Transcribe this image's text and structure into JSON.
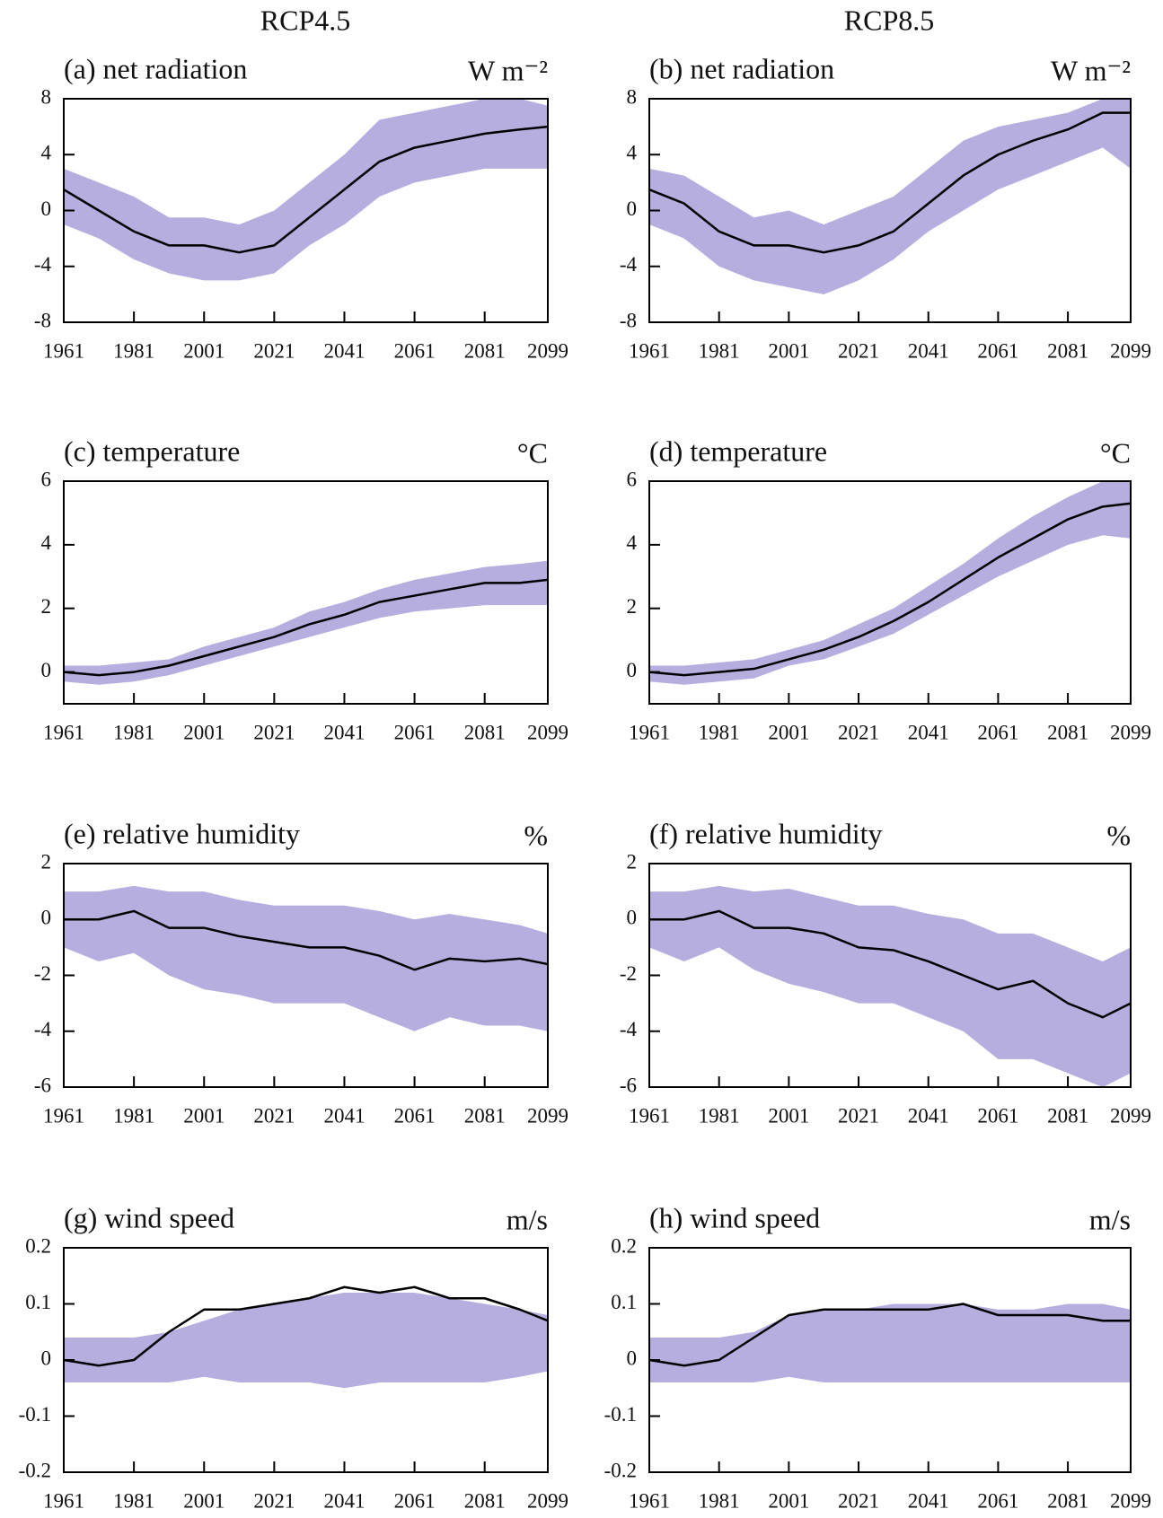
{
  "column_titles": [
    "RCP4.5",
    "RCP8.5"
  ],
  "chart_data": [
    {
      "type": "line",
      "title": "(a) net radiation",
      "unit": "W m⁻²",
      "color": "#000000",
      "band_color": "#b5aede",
      "x": [
        1961,
        1971,
        1981,
        1991,
        2001,
        2011,
        2021,
        2031,
        2041,
        2051,
        2061,
        2071,
        2081,
        2091,
        2099
      ],
      "values": [
        1.5,
        0,
        -1.5,
        -2.5,
        -2.5,
        -3,
        -2.5,
        -0.5,
        1.5,
        3.5,
        4.5,
        5,
        5.5,
        5.8,
        6
      ],
      "lower": [
        -1,
        -2,
        -3.5,
        -4.5,
        -5,
        -5,
        -4.5,
        -2.5,
        -1,
        1,
        2,
        2.5,
        3,
        3,
        3
      ],
      "upper": [
        3,
        2,
        1,
        -0.5,
        -0.5,
        -1,
        0,
        2,
        4,
        6.5,
        7,
        7.5,
        8,
        8,
        7.5
      ],
      "xlim": [
        1961,
        2099
      ],
      "xticks": [
        1961,
        1981,
        2001,
        2021,
        2041,
        2061,
        2081,
        2099
      ],
      "ylim": [
        -8,
        8
      ],
      "yticks": [
        -8,
        -4,
        0,
        4,
        8
      ]
    },
    {
      "type": "line",
      "title": "(b) net radiation",
      "unit": "W m⁻²",
      "color": "#000000",
      "band_color": "#b5aede",
      "x": [
        1961,
        1971,
        1981,
        1991,
        2001,
        2011,
        2021,
        2031,
        2041,
        2051,
        2061,
        2071,
        2081,
        2091,
        2099
      ],
      "values": [
        1.5,
        0.5,
        -1.5,
        -2.5,
        -2.5,
        -3,
        -2.5,
        -1.5,
        0.5,
        2.5,
        4,
        5,
        5.8,
        7,
        7
      ],
      "lower": [
        -1,
        -2,
        -4,
        -5,
        -5.5,
        -6,
        -5,
        -3.5,
        -1.5,
        0,
        1.5,
        2.5,
        3.5,
        4.5,
        3
      ],
      "upper": [
        3,
        2.5,
        1,
        -0.5,
        0,
        -1,
        0,
        1,
        3,
        5,
        6,
        6.5,
        7,
        8,
        8
      ],
      "xlim": [
        1961,
        2099
      ],
      "xticks": [
        1961,
        1981,
        2001,
        2021,
        2041,
        2061,
        2081,
        2099
      ],
      "ylim": [
        -8,
        8
      ],
      "yticks": [
        -8,
        -4,
        0,
        4,
        8
      ]
    },
    {
      "type": "line",
      "title": "(c) temperature",
      "unit": "°C",
      "color": "#000000",
      "band_color": "#b5aede",
      "x": [
        1961,
        1971,
        1981,
        1991,
        2001,
        2011,
        2021,
        2031,
        2041,
        2051,
        2061,
        2071,
        2081,
        2091,
        2099
      ],
      "values": [
        0,
        -0.1,
        0,
        0.2,
        0.5,
        0.8,
        1.1,
        1.5,
        1.8,
        2.2,
        2.4,
        2.6,
        2.8,
        2.8,
        2.9
      ],
      "lower": [
        -0.3,
        -0.4,
        -0.3,
        -0.1,
        0.2,
        0.5,
        0.8,
        1.1,
        1.4,
        1.7,
        1.9,
        2,
        2.1,
        2.1,
        2.1
      ],
      "upper": [
        0.2,
        0.2,
        0.3,
        0.4,
        0.8,
        1.1,
        1.4,
        1.9,
        2.2,
        2.6,
        2.9,
        3.1,
        3.3,
        3.4,
        3.5
      ],
      "xlim": [
        1961,
        2099
      ],
      "xticks": [
        1961,
        1981,
        2001,
        2021,
        2041,
        2061,
        2081,
        2099
      ],
      "ylim": [
        -1,
        6
      ],
      "yticks": [
        0,
        2,
        4,
        6
      ]
    },
    {
      "type": "line",
      "title": "(d) temperature",
      "unit": "°C",
      "color": "#000000",
      "band_color": "#b5aede",
      "x": [
        1961,
        1971,
        1981,
        1991,
        2001,
        2011,
        2021,
        2031,
        2041,
        2051,
        2061,
        2071,
        2081,
        2091,
        2099
      ],
      "values": [
        0,
        -0.1,
        0,
        0.1,
        0.4,
        0.7,
        1.1,
        1.6,
        2.2,
        2.9,
        3.6,
        4.2,
        4.8,
        5.2,
        5.3
      ],
      "lower": [
        -0.3,
        -0.4,
        -0.3,
        -0.2,
        0.2,
        0.4,
        0.8,
        1.2,
        1.8,
        2.4,
        3,
        3.5,
        4,
        4.3,
        4.2
      ],
      "upper": [
        0.2,
        0.2,
        0.3,
        0.4,
        0.7,
        1,
        1.5,
        2,
        2.7,
        3.4,
        4.2,
        4.9,
        5.5,
        6,
        6
      ],
      "xlim": [
        1961,
        2099
      ],
      "xticks": [
        1961,
        1981,
        2001,
        2021,
        2041,
        2061,
        2081,
        2099
      ],
      "ylim": [
        -1,
        6
      ],
      "yticks": [
        0,
        2,
        4,
        6
      ]
    },
    {
      "type": "line",
      "title": "(e) relative humidity",
      "unit": "%",
      "color": "#000000",
      "band_color": "#b5aede",
      "x": [
        1961,
        1971,
        1981,
        1991,
        2001,
        2011,
        2021,
        2031,
        2041,
        2051,
        2061,
        2071,
        2081,
        2091,
        2099
      ],
      "values": [
        0,
        0,
        0.3,
        -0.3,
        -0.3,
        -0.6,
        -0.8,
        -1,
        -1,
        -1.3,
        -1.8,
        -1.4,
        -1.5,
        -1.4,
        -1.6
      ],
      "lower": [
        -1,
        -1.5,
        -1.2,
        -2,
        -2.5,
        -2.7,
        -3,
        -3,
        -3,
        -3.5,
        -4,
        -3.5,
        -3.8,
        -3.8,
        -4
      ],
      "upper": [
        1,
        1,
        1.2,
        1,
        1,
        0.7,
        0.5,
        0.5,
        0.5,
        0.3,
        0,
        0.2,
        0,
        -0.2,
        -0.5
      ],
      "xlim": [
        1961,
        2099
      ],
      "xticks": [
        1961,
        1981,
        2001,
        2021,
        2041,
        2061,
        2081,
        2099
      ],
      "ylim": [
        -6,
        2
      ],
      "yticks": [
        -6,
        -4,
        -2,
        0,
        2
      ]
    },
    {
      "type": "line",
      "title": "(f) relative humidity",
      "unit": "%",
      "color": "#000000",
      "band_color": "#b5aede",
      "x": [
        1961,
        1971,
        1981,
        1991,
        2001,
        2011,
        2021,
        2031,
        2041,
        2051,
        2061,
        2071,
        2081,
        2091,
        2099
      ],
      "values": [
        0,
        0,
        0.3,
        -0.3,
        -0.3,
        -0.5,
        -1,
        -1.1,
        -1.5,
        -2,
        -2.5,
        -2.2,
        -3,
        -3.5,
        -3
      ],
      "lower": [
        -1,
        -1.5,
        -1,
        -1.8,
        -2.3,
        -2.6,
        -3,
        -3,
        -3.5,
        -4,
        -5,
        -5,
        -5.5,
        -6,
        -5.5
      ],
      "upper": [
        1,
        1,
        1.2,
        1,
        1.1,
        0.8,
        0.5,
        0.5,
        0.2,
        0,
        -0.5,
        -0.5,
        -1,
        -1.5,
        -1
      ],
      "xlim": [
        1961,
        2099
      ],
      "xticks": [
        1961,
        1981,
        2001,
        2021,
        2041,
        2061,
        2081,
        2099
      ],
      "ylim": [
        -6,
        2
      ],
      "yticks": [
        -6,
        -4,
        -2,
        0,
        2
      ]
    },
    {
      "type": "line",
      "title": "(g) wind speed",
      "unit": "m/s",
      "color": "#000000",
      "band_color": "#b5aede",
      "x": [
        1961,
        1971,
        1981,
        1991,
        2001,
        2011,
        2021,
        2031,
        2041,
        2051,
        2061,
        2071,
        2081,
        2091,
        2099
      ],
      "values": [
        0,
        -0.01,
        0,
        0.05,
        0.09,
        0.09,
        0.1,
        0.11,
        0.13,
        0.12,
        0.13,
        0.11,
        0.11,
        0.09,
        0.07
      ],
      "lower": [
        -0.04,
        -0.04,
        -0.04,
        -0.04,
        -0.03,
        -0.04,
        -0.04,
        -0.04,
        -0.05,
        -0.04,
        -0.04,
        -0.04,
        -0.04,
        -0.03,
        -0.02
      ],
      "upper": [
        0.04,
        0.04,
        0.04,
        0.05,
        0.07,
        0.09,
        0.1,
        0.11,
        0.12,
        0.12,
        0.12,
        0.11,
        0.1,
        0.09,
        0.08
      ],
      "xlim": [
        1961,
        2099
      ],
      "xticks": [
        1961,
        1981,
        2001,
        2021,
        2041,
        2061,
        2081,
        2099
      ],
      "ylim": [
        -0.2,
        0.2
      ],
      "yticks": [
        -0.2,
        -0.1,
        0,
        0.1,
        0.2
      ]
    },
    {
      "type": "line",
      "title": "(h) wind speed",
      "unit": "m/s",
      "color": "#000000",
      "band_color": "#b5aede",
      "x": [
        1961,
        1971,
        1981,
        1991,
        2001,
        2011,
        2021,
        2031,
        2041,
        2051,
        2061,
        2071,
        2081,
        2091,
        2099
      ],
      "values": [
        0,
        -0.01,
        0,
        0.04,
        0.08,
        0.09,
        0.09,
        0.09,
        0.09,
        0.1,
        0.08,
        0.08,
        0.08,
        0.07,
        0.07
      ],
      "lower": [
        -0.04,
        -0.04,
        -0.04,
        -0.04,
        -0.03,
        -0.04,
        -0.04,
        -0.04,
        -0.04,
        -0.04,
        -0.04,
        -0.04,
        -0.04,
        -0.04,
        -0.04
      ],
      "upper": [
        0.04,
        0.04,
        0.04,
        0.05,
        0.08,
        0.09,
        0.09,
        0.1,
        0.1,
        0.1,
        0.09,
        0.09,
        0.1,
        0.1,
        0.09
      ],
      "xlim": [
        1961,
        2099
      ],
      "xticks": [
        1961,
        1981,
        2001,
        2021,
        2041,
        2061,
        2081,
        2099
      ],
      "ylim": [
        -0.2,
        0.2
      ],
      "yticks": [
        -0.2,
        -0.1,
        0,
        0.1,
        0.2
      ]
    }
  ]
}
